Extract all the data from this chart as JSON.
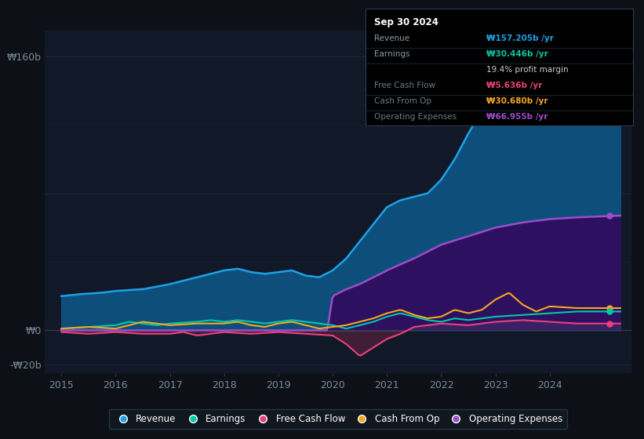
{
  "bg_color": "#0d1117",
  "plot_bg_color": "#111827",
  "grid_color": "#1e2d3d",
  "ylabel_top": "₩160b",
  "ylabel_zero": "₩0",
  "ylabel_neg": "-₩20b",
  "x_ticks": [
    2015,
    2016,
    2017,
    2018,
    2019,
    2020,
    2021,
    2022,
    2023,
    2024
  ],
  "ylim": [
    -25,
    175
  ],
  "xlim": [
    2014.7,
    2025.5
  ],
  "colors": {
    "Revenue": "#1da1e8",
    "Earnings": "#00c9a7",
    "FreeCashFlow": "#e8407a",
    "CashFromOp": "#f5a623",
    "OperatingExpenses": "#9b4dca"
  },
  "fill_colors": {
    "Revenue": "#0d4f7a",
    "OperatingExpenses": "#2d1060"
  },
  "infobox": {
    "title": "Sep 30 2024",
    "rows": [
      {
        "label": "Revenue",
        "value": "₩157.205b /yr",
        "color": "#1da1e8",
        "dimmed": false
      },
      {
        "label": "Earnings",
        "value": "₩30.446b /yr",
        "color": "#00c9a7",
        "dimmed": false
      },
      {
        "label": "",
        "value": "19.4% profit margin",
        "color": "#cccccc",
        "dimmed": false
      },
      {
        "label": "Free Cash Flow",
        "value": "₩5.636b /yr",
        "color": "#e8407a",
        "dimmed": true
      },
      {
        "label": "Cash From Op",
        "value": "₩30.680b /yr",
        "color": "#f5a623",
        "dimmed": true
      },
      {
        "label": "Operating Expenses",
        "value": "₩66.955b /yr",
        "color": "#9b4dca",
        "dimmed": true
      }
    ]
  },
  "legend": [
    {
      "label": "Revenue",
      "color": "#1da1e8"
    },
    {
      "label": "Earnings",
      "color": "#00c9a7"
    },
    {
      "label": "Free Cash Flow",
      "color": "#e8407a"
    },
    {
      "label": "Cash From Op",
      "color": "#f5a623"
    },
    {
      "label": "Operating Expenses",
      "color": "#9b4dca"
    }
  ]
}
